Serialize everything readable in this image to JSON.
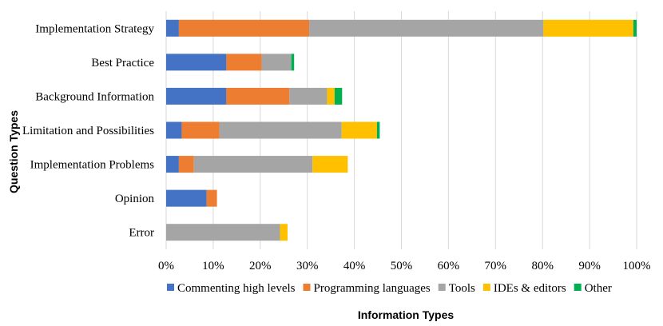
{
  "chart_data": {
    "type": "bar",
    "orientation": "horizontal",
    "stacked": true,
    "categories": [
      "Implementation Strategy",
      "Best Practice",
      "Background Information",
      "Limitation and Possibilities",
      "Implementation Problems",
      "Opinion",
      "Error"
    ],
    "series": [
      {
        "name": "Commenting high levels",
        "color": "#4472C4",
        "values": [
          2.7,
          12.8,
          12.8,
          3.3,
          2.7,
          8.6,
          0
        ]
      },
      {
        "name": "Programming languages",
        "color": "#ED7D31",
        "values": [
          27.7,
          7.5,
          13.4,
          8.0,
          3.2,
          2.2,
          0
        ]
      },
      {
        "name": "Tools",
        "color": "#A5A5A5",
        "values": [
          49.8,
          6.3,
          8.0,
          26.0,
          25.2,
          0,
          24.2
        ]
      },
      {
        "name": "IDEs & editors",
        "color": "#FFC000",
        "values": [
          19.1,
          0,
          1.6,
          7.5,
          7.5,
          0,
          1.6
        ]
      },
      {
        "name": "Other",
        "color": "#00B050",
        "values": [
          0.7,
          0.6,
          1.6,
          0.6,
          0,
          0,
          0
        ]
      }
    ],
    "xaxis": {
      "ticks": [
        "0%",
        "10%",
        "20%",
        "30%",
        "40%",
        "50%",
        "60%",
        "70%",
        "80%",
        "90%",
        "100%"
      ],
      "range": [
        0,
        100
      ]
    },
    "xlabel": "Information Types",
    "ylabel": "Question Types",
    "legend_position": "bottom",
    "grid": "vertical"
  }
}
